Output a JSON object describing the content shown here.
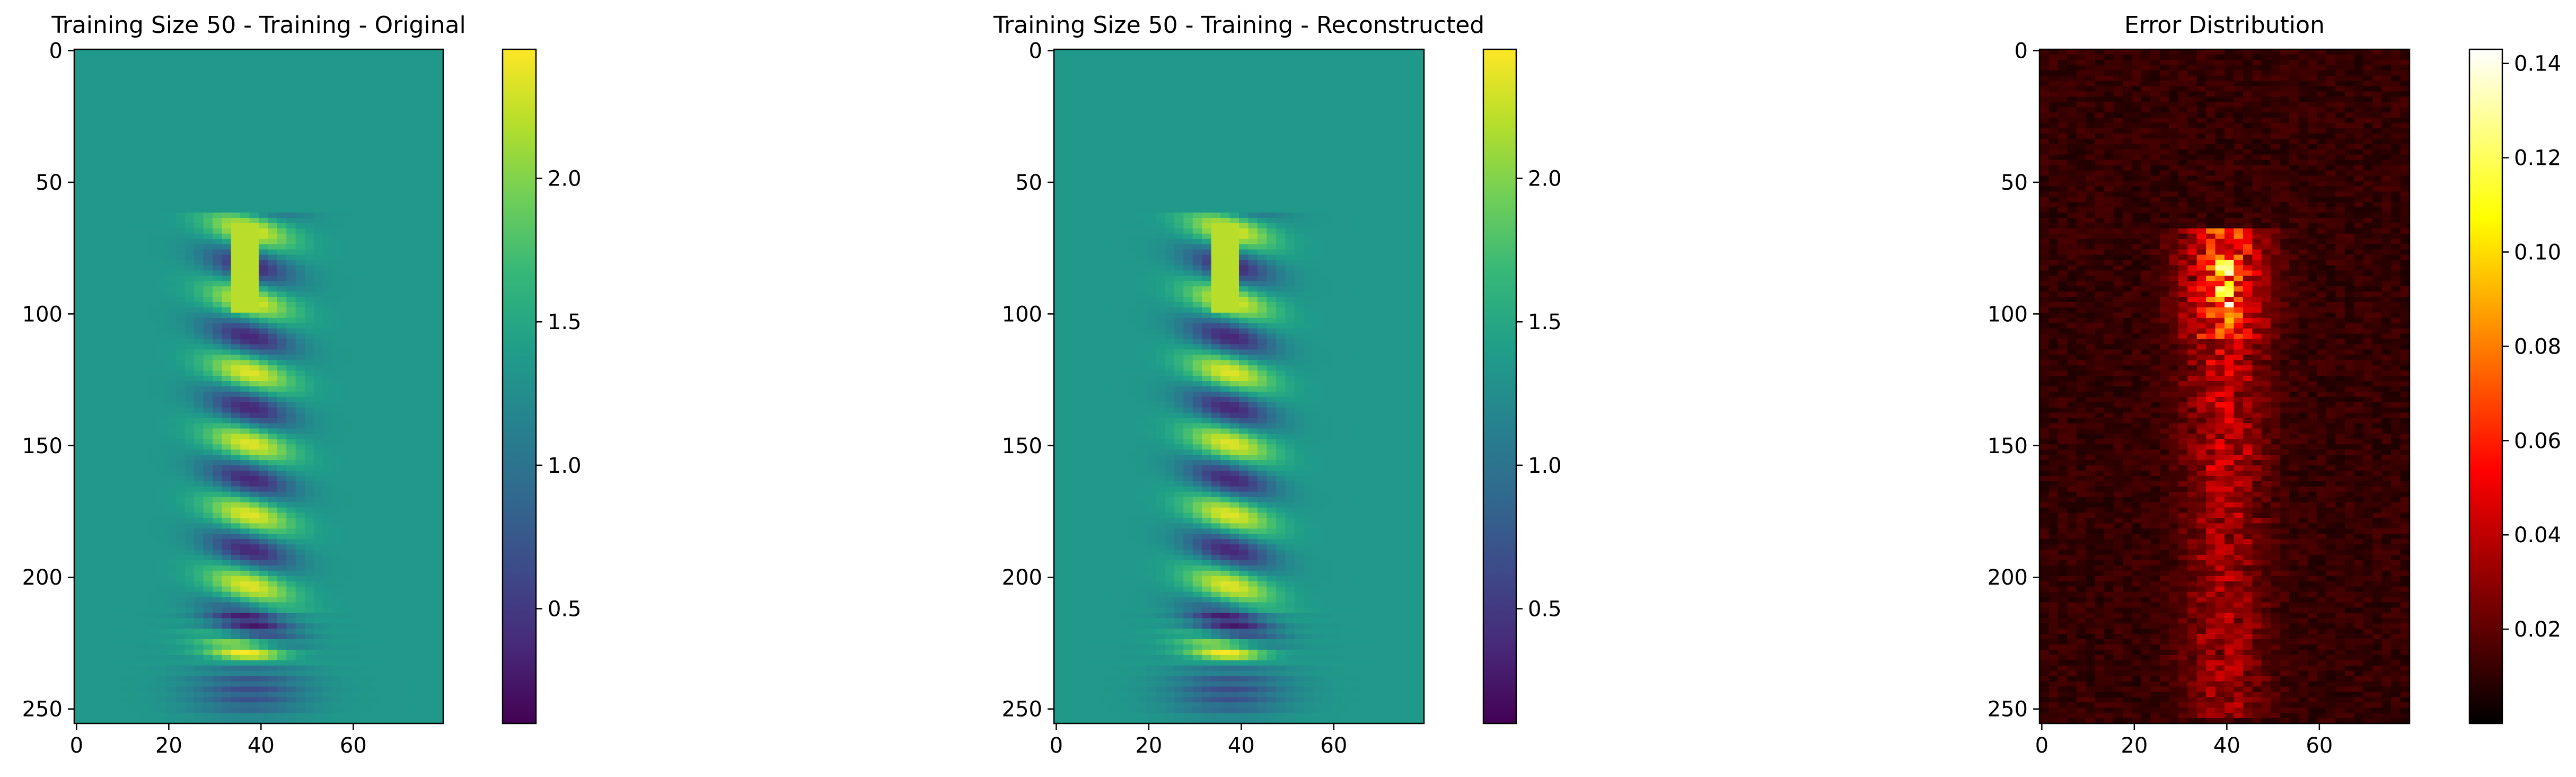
{
  "chart_data": [
    {
      "type": "heatmap",
      "title": "Training Size 50 - Training - Original",
      "colormap": "viridis",
      "xlim": [
        -0.5,
        79.5
      ],
      "ylim": [
        -0.5,
        255.5
      ],
      "xticks": [
        0,
        20,
        40,
        60
      ],
      "yticks": [
        0,
        50,
        100,
        150,
        200,
        250
      ],
      "colorbar": {
        "range": [
          0.1,
          2.45
        ],
        "ticks": [
          0.5,
          1.0,
          1.5,
          2.0
        ]
      },
      "background_value": 1.35
    },
    {
      "type": "heatmap",
      "title": "Training Size 50 - Training - Reconstructed",
      "colormap": "viridis",
      "xlim": [
        -0.5,
        79.5
      ],
      "ylim": [
        -0.5,
        255.5
      ],
      "xticks": [
        0,
        20,
        40,
        60
      ],
      "yticks": [
        0,
        50,
        100,
        150,
        200,
        250
      ],
      "colorbar": {
        "range": [
          0.1,
          2.45
        ],
        "ticks": [
          0.5,
          1.0,
          1.5,
          2.0
        ]
      },
      "background_value": 1.35
    },
    {
      "type": "heatmap",
      "title": "Error Distribution",
      "colormap": "hot",
      "xlim": [
        -0.5,
        79.5
      ],
      "ylim": [
        -0.5,
        255.5
      ],
      "xticks": [
        0,
        20,
        40,
        60
      ],
      "yticks": [
        0,
        50,
        100,
        150,
        200,
        250
      ],
      "colorbar": {
        "range": [
          0.0,
          0.143
        ],
        "ticks": [
          0.02,
          0.04,
          0.06,
          0.08,
          0.1,
          0.12,
          0.14
        ]
      }
    }
  ],
  "colors": {
    "viridis": [
      "#440154",
      "#482878",
      "#3e4989",
      "#31688e",
      "#26828e",
      "#1f9e89",
      "#35b779",
      "#6ece58",
      "#b5de2b",
      "#fde725"
    ],
    "hot": [
      "#000000",
      "#550000",
      "#aa0000",
      "#ff0000",
      "#ff5500",
      "#ffaa00",
      "#ffff00",
      "#ffff80",
      "#ffffff"
    ]
  }
}
